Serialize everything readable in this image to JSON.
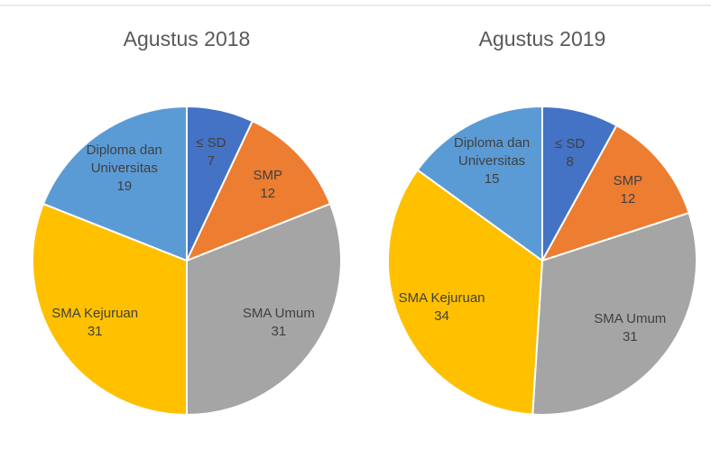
{
  "chart_data": [
    {
      "type": "pie",
      "title": "Agustus 2018",
      "categories": [
        "≤ SD",
        "SMP",
        "SMA Umum",
        "SMA Kejuruan",
        "Diploma dan Universitas"
      ],
      "values": [
        7,
        12,
        31,
        31,
        19
      ],
      "colors": [
        "#4472c4",
        "#ed7d31",
        "#a5a5a5",
        "#ffc000",
        "#5b9bd5"
      ]
    },
    {
      "type": "pie",
      "title": "Agustus 2019",
      "categories": [
        "≤ SD",
        "SMP",
        "SMA Umum",
        "SMA Kejuruan",
        "Diploma dan Universitas"
      ],
      "values": [
        8,
        12,
        31,
        34,
        15
      ],
      "colors": [
        "#4472c4",
        "#ed7d31",
        "#a5a5a5",
        "#ffc000",
        "#5b9bd5"
      ]
    }
  ]
}
